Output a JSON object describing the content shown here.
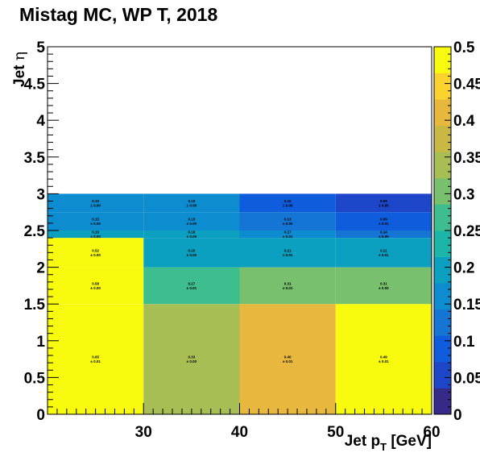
{
  "chart_data": {
    "type": "heatmap",
    "title": "Mistag MC, WP T, 2018",
    "xlabel": "Jet p",
    "xlabel_sub": "T",
    "xlabel_unit": " [GeV]",
    "ylabel": "Jet ",
    "ylabel_greek": "η",
    "xlim": [
      20,
      60
    ],
    "ylim": [
      0,
      5
    ],
    "x_edges": [
      20,
      30,
      40,
      50,
      60
    ],
    "y_edges": [
      0,
      1.5,
      2.0,
      2.4,
      2.5,
      2.75,
      3.0
    ],
    "x_tick_labels": [
      "30",
      "40",
      "50",
      "60"
    ],
    "y_tick_labels": [
      "0",
      "0.5",
      "1",
      "1.5",
      "2",
      "2.5",
      "3",
      "3.5",
      "4",
      "4.5",
      "5"
    ],
    "zlim": [
      0,
      0.5
    ],
    "z_tick_labels": [
      "0",
      "0.05",
      "0.1",
      "0.15",
      "0.2",
      "0.25",
      "0.3",
      "0.35",
      "0.4",
      "0.45",
      "0.5"
    ],
    "bins": [
      {
        "x": [
          20,
          30
        ],
        "y": [
          0,
          1.5
        ],
        "value": 0.65,
        "label": "0.65",
        "err": "± 0.01"
      },
      {
        "x": [
          30,
          40
        ],
        "y": [
          0,
          1.5
        ],
        "value": 0.33,
        "label": "0.33",
        "err": "± 0.00"
      },
      {
        "x": [
          40,
          50
        ],
        "y": [
          0,
          1.5
        ],
        "value": 0.4,
        "label": "0.40",
        "err": "± 0.01"
      },
      {
        "x": [
          50,
          60
        ],
        "y": [
          0,
          1.5
        ],
        "value": 0.49,
        "label": "0.49",
        "err": "± 0.01"
      },
      {
        "x": [
          20,
          30
        ],
        "y": [
          1.5,
          2.0
        ],
        "value": 0.58,
        "label": "0.58",
        "err": "± 0.00"
      },
      {
        "x": [
          30,
          40
        ],
        "y": [
          1.5,
          2.0
        ],
        "value": 0.27,
        "label": "0.27",
        "err": "± 0.01"
      },
      {
        "x": [
          40,
          50
        ],
        "y": [
          1.5,
          2.0
        ],
        "value": 0.31,
        "label": "0.31",
        "err": "± 0.01"
      },
      {
        "x": [
          50,
          60
        ],
        "y": [
          1.5,
          2.0
        ],
        "value": 0.31,
        "label": "0.31",
        "err": "± 0.00"
      },
      {
        "x": [
          20,
          30
        ],
        "y": [
          2.0,
          2.4
        ],
        "value": 0.52,
        "label": "0.52",
        "err": "± 0.00"
      },
      {
        "x": [
          30,
          40
        ],
        "y": [
          2.0,
          2.4
        ],
        "value": 0.2,
        "label": "0.20",
        "err": "± 0.00"
      },
      {
        "x": [
          40,
          50
        ],
        "y": [
          2.0,
          2.4
        ],
        "value": 0.21,
        "label": "0.21",
        "err": "± 0.01"
      },
      {
        "x": [
          50,
          60
        ],
        "y": [
          2.0,
          2.4
        ],
        "value": 0.21,
        "label": "0.21",
        "err": "± 0.01"
      },
      {
        "x": [
          20,
          30
        ],
        "y": [
          2.4,
          2.5
        ],
        "value": 0.19,
        "label": "0.19",
        "err": "± 0.00"
      },
      {
        "x": [
          30,
          40
        ],
        "y": [
          2.4,
          2.5
        ],
        "value": 0.18,
        "label": "0.18",
        "err": "± 0.00"
      },
      {
        "x": [
          40,
          50
        ],
        "y": [
          2.4,
          2.5
        ],
        "value": 0.17,
        "label": "0.17",
        "err": "± 0.01"
      },
      {
        "x": [
          50,
          60
        ],
        "y": [
          2.4,
          2.5
        ],
        "value": 0.14,
        "label": "0.14",
        "err": "± 0.00"
      },
      {
        "x": [
          20,
          30
        ],
        "y": [
          2.5,
          2.75
        ],
        "value": 0.15,
        "label": "0.15",
        "err": "± 0.00"
      },
      {
        "x": [
          30,
          40
        ],
        "y": [
          2.5,
          2.75
        ],
        "value": 0.15,
        "label": "0.15",
        "err": "± 0.00"
      },
      {
        "x": [
          40,
          50
        ],
        "y": [
          2.5,
          2.75
        ],
        "value": 0.13,
        "label": "0.13",
        "err": "± 0.00"
      },
      {
        "x": [
          50,
          60
        ],
        "y": [
          2.5,
          2.75
        ],
        "value": 0.09,
        "label": "0.09",
        "err": "± 0.01"
      },
      {
        "x": [
          20,
          30
        ],
        "y": [
          2.75,
          3.0
        ],
        "value": 0.15,
        "label": "0.15",
        "err": "± 0.00"
      },
      {
        "x": [
          30,
          40
        ],
        "y": [
          2.75,
          3.0
        ],
        "value": 0.15,
        "label": "0.15",
        "err": "± 0.00"
      },
      {
        "x": [
          40,
          50
        ],
        "y": [
          2.75,
          3.0
        ],
        "value": 0.1,
        "label": "0.10",
        "err": "± 0.00"
      },
      {
        "x": [
          50,
          60
        ],
        "y": [
          2.75,
          3.0
        ],
        "value": 0.06,
        "label": "0.06",
        "err": "± 0.00"
      }
    ],
    "colors": {
      "palette": [
        "#352a87",
        "#1e46c8",
        "#0f5cdd",
        "#1475d4",
        "#0d8cd0",
        "#0ca0c0",
        "#1db5a8",
        "#3ebd8e",
        "#78bf6e",
        "#a6be54",
        "#c9b844",
        "#e8b83e",
        "#fbd22e",
        "#f9fb0e"
      ]
    }
  }
}
